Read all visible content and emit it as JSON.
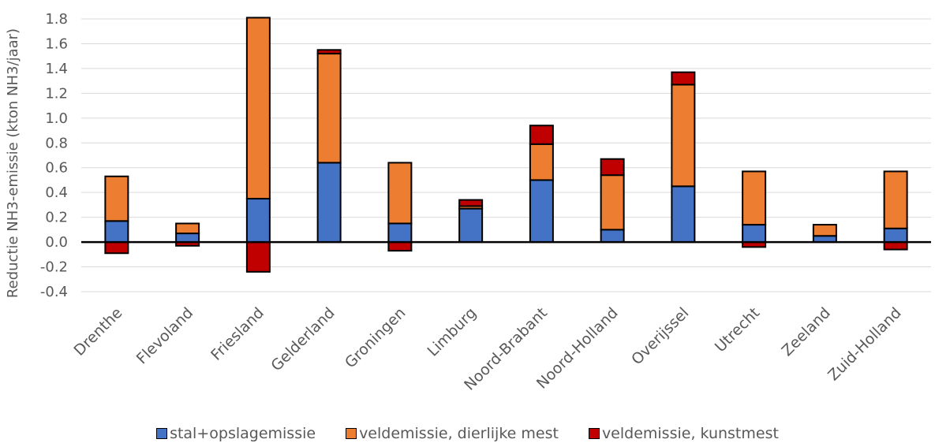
{
  "chart_data": {
    "type": "bar",
    "stacked": true,
    "ylabel": "Reductie NH3-emissie (kton NH3/jaar)",
    "xlabel": "",
    "ylim": [
      -0.4,
      1.8
    ],
    "yticks": [
      "-0.4",
      "-0.2",
      "0.0",
      "0.2",
      "0.4",
      "0.6",
      "0.8",
      "1.0",
      "1.2",
      "1.4",
      "1.6",
      "1.8"
    ],
    "grid": true,
    "legend_position": "bottom",
    "categories": [
      "Drenthe",
      "Flevoland",
      "Friesland",
      "Gelderland",
      "Groningen",
      "Limburg",
      "Noord-Brabant",
      "Noord-Holland",
      "Overijssel",
      "Utrecht",
      "Zeeland",
      "Zuid-Holland"
    ],
    "series": [
      {
        "name": "stal+opslagemissie",
        "color": "#4472C4",
        "values": [
          0.17,
          0.07,
          0.35,
          0.64,
          0.15,
          0.27,
          0.5,
          0.1,
          0.45,
          0.14,
          0.05,
          0.11
        ]
      },
      {
        "name": "veldemissie, dierlijke mest",
        "color": "#ED7D31",
        "values": [
          0.36,
          0.08,
          1.46,
          0.88,
          0.49,
          0.02,
          0.29,
          0.44,
          0.82,
          0.43,
          0.09,
          0.46
        ]
      },
      {
        "name": "veldemissie, kunstmest",
        "color": "#C00000",
        "values": [
          -0.09,
          -0.03,
          -0.24,
          0.03,
          -0.07,
          0.05,
          0.15,
          0.13,
          0.1,
          -0.04,
          0.0,
          -0.06
        ]
      }
    ]
  }
}
